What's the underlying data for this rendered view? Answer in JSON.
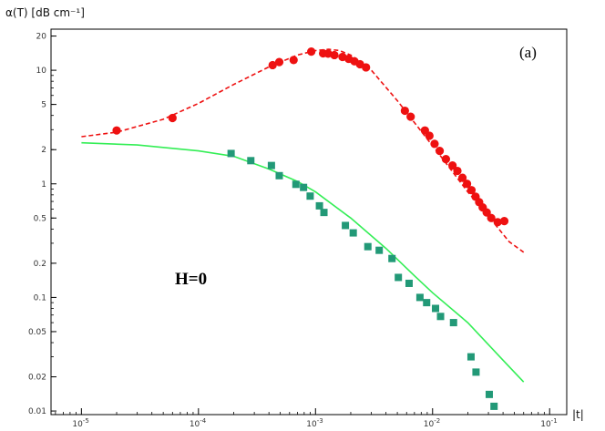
{
  "chart_data": {
    "type": "scatter",
    "ylabel": "α(T)  [dB cm⁻¹]",
    "xlabel": "|t|",
    "panel_label": "(a)",
    "annotation": "H=0",
    "x_scale": "log",
    "y_scale": "log",
    "xlim": [
      5.5e-06,
      0.14
    ],
    "ylim": [
      0.0093,
      23
    ],
    "x_ticks": [
      {
        "value": 1e-05,
        "label": "10",
        "exp": "-5"
      },
      {
        "value": 0.0001,
        "label": "10",
        "exp": "-4"
      },
      {
        "value": 0.001,
        "label": "10",
        "exp": "-3"
      },
      {
        "value": 0.01,
        "label": "10",
        "exp": "-2"
      },
      {
        "value": 0.1,
        "label": "10",
        "exp": "-1"
      }
    ],
    "y_ticks": [
      {
        "value": 20,
        "label": "20"
      },
      {
        "value": 10,
        "label": "10"
      },
      {
        "value": 5,
        "label": "5"
      },
      {
        "value": 2,
        "label": "2"
      },
      {
        "value": 1,
        "label": "1"
      },
      {
        "value": 0.5,
        "label": "0.5"
      },
      {
        "value": 0.2,
        "label": "0.2"
      },
      {
        "value": 0.1,
        "label": "0.1"
      },
      {
        "value": 0.05,
        "label": "0.05"
      },
      {
        "value": 0.02,
        "label": "0.02"
      },
      {
        "value": 0.01,
        "label": "0.01"
      }
    ],
    "series": [
      {
        "marker": "circle",
        "color": "#ee1111",
        "points": [
          [
            2e-05,
            2.95
          ],
          [
            6e-05,
            3.8
          ],
          [
            0.00043,
            11.1
          ],
          [
            0.00049,
            11.8
          ],
          [
            0.00065,
            12.3
          ],
          [
            0.00092,
            14.6
          ],
          [
            0.00116,
            14.1
          ],
          [
            0.00128,
            14.0
          ],
          [
            0.00145,
            13.6
          ],
          [
            0.0017,
            13.1
          ],
          [
            0.00192,
            12.6
          ],
          [
            0.00215,
            12.0
          ],
          [
            0.0024,
            11.3
          ],
          [
            0.0027,
            10.6
          ],
          [
            0.0058,
            4.4
          ],
          [
            0.0065,
            3.9
          ],
          [
            0.0086,
            2.95
          ],
          [
            0.0094,
            2.65
          ],
          [
            0.0104,
            2.25
          ],
          [
            0.0115,
            1.95
          ],
          [
            0.013,
            1.65
          ],
          [
            0.0148,
            1.45
          ],
          [
            0.0163,
            1.3
          ],
          [
            0.018,
            1.13
          ],
          [
            0.0197,
            1.0
          ],
          [
            0.0215,
            0.88
          ],
          [
            0.0233,
            0.77
          ],
          [
            0.025,
            0.69
          ],
          [
            0.0268,
            0.62
          ],
          [
            0.029,
            0.56
          ],
          [
            0.0317,
            0.5
          ],
          [
            0.036,
            0.46
          ],
          [
            0.041,
            0.47
          ]
        ]
      },
      {
        "marker": "square",
        "color": "#229977",
        "points": [
          [
            0.00019,
            1.85
          ],
          [
            0.00028,
            1.6
          ],
          [
            0.00042,
            1.45
          ],
          [
            0.00049,
            1.18
          ],
          [
            0.00068,
            0.99
          ],
          [
            0.00079,
            0.93
          ],
          [
            0.0009,
            0.78
          ],
          [
            0.00108,
            0.64
          ],
          [
            0.00118,
            0.56
          ],
          [
            0.0018,
            0.43
          ],
          [
            0.0021,
            0.37
          ],
          [
            0.0028,
            0.28
          ],
          [
            0.0035,
            0.26
          ],
          [
            0.0045,
            0.22
          ],
          [
            0.0051,
            0.15
          ],
          [
            0.0063,
            0.133
          ],
          [
            0.0078,
            0.1
          ],
          [
            0.0089,
            0.09
          ],
          [
            0.0106,
            0.08
          ],
          [
            0.0117,
            0.068
          ],
          [
            0.0151,
            0.06
          ],
          [
            0.0213,
            0.03
          ],
          [
            0.0235,
            0.022
          ],
          [
            0.0305,
            0.014
          ],
          [
            0.0335,
            0.011
          ]
        ]
      },
      {
        "line": "dashed",
        "color": "#ee1111",
        "points": [
          [
            1e-05,
            2.6
          ],
          [
            2e-05,
            2.85
          ],
          [
            5e-05,
            3.7
          ],
          [
            0.0001,
            5.1
          ],
          [
            0.0002,
            7.5
          ],
          [
            0.0004,
            10.7
          ],
          [
            0.0007,
            13.6
          ],
          [
            0.001,
            14.9
          ],
          [
            0.0013,
            15.3
          ],
          [
            0.0016,
            14.9
          ],
          [
            0.002,
            13.6
          ],
          [
            0.003,
            10.0
          ],
          [
            0.005,
            5.4
          ],
          [
            0.008,
            2.9
          ],
          [
            0.012,
            1.7
          ],
          [
            0.02,
            0.85
          ],
          [
            0.03,
            0.52
          ],
          [
            0.045,
            0.31
          ],
          [
            0.06,
            0.25
          ]
        ]
      },
      {
        "line": "solid",
        "color": "#33ee55",
        "points": [
          [
            1e-05,
            2.3
          ],
          [
            3e-05,
            2.2
          ],
          [
            0.0001,
            1.95
          ],
          [
            0.0002,
            1.75
          ],
          [
            0.0004,
            1.35
          ],
          [
            0.0007,
            1.05
          ],
          [
            0.001,
            0.85
          ],
          [
            0.002,
            0.5
          ],
          [
            0.004,
            0.27
          ],
          [
            0.007,
            0.155
          ],
          [
            0.01,
            0.11
          ],
          [
            0.02,
            0.06
          ],
          [
            0.04,
            0.028
          ],
          [
            0.06,
            0.018
          ]
        ]
      }
    ]
  }
}
